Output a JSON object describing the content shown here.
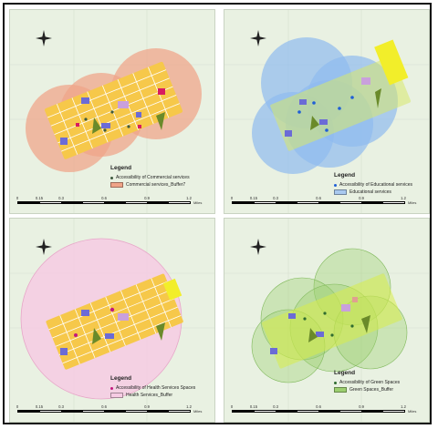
{
  "panels": [
    {
      "id": "commercial",
      "legend_title": "Legend",
      "point_label": "Accessibility of Commercial services",
      "buffer_label": "Commercial services_Buffer7",
      "buffer_fill": "#f0a488",
      "point_color": "#3e5a3e",
      "highlight_color": "#d81b60"
    },
    {
      "id": "educational",
      "legend_title": "Legend",
      "point_label": "Accessibility of Educational services",
      "buffer_label": "Educational services",
      "buffer_fill": "#8fbbf0",
      "point_color": "#1f5fd6",
      "highlight_color": "#1f5fd6"
    },
    {
      "id": "health",
      "legend_title": "Legend",
      "point_label": "Accessibility of Health Services Spaces",
      "buffer_label": "Health Services_Buffer",
      "buffer_fill": "#f6cbe3",
      "point_color": "#c2187e",
      "highlight_color": "#e01a8a"
    },
    {
      "id": "green",
      "legend_title": "Legend",
      "point_label": "Accessibility of Green Spaces",
      "buffer_label": "Green Spaces_Buffer",
      "buffer_fill": "#9ccf6f",
      "point_color": "#2f6b2f",
      "highlight_color": "#4c9a3c"
    }
  ],
  "scale": {
    "ticks": [
      "0",
      "0.15",
      "0.3",
      "0.6",
      "0.9",
      "1.2"
    ],
    "unit": "Miles"
  },
  "colors": {
    "background": "#e9f1e2",
    "urban_block": "#f6c84a",
    "building": "#6b6bd6",
    "road": "#ffffff"
  }
}
